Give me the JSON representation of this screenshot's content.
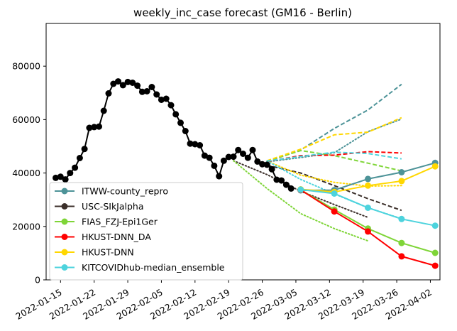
{
  "chart_data": {
    "type": "line",
    "title": "weekly_inc_case forecast (GM16 - Berlin)",
    "xlabel": "",
    "ylabel": "",
    "xlim": [
      "2022-01-12",
      "2022-04-04"
    ],
    "ylim": [
      0,
      96000
    ],
    "y_ticks": [
      0,
      20000,
      40000,
      60000,
      80000
    ],
    "x_ticks": [
      "2022-01-15",
      "2022-01-22",
      "2022-01-29",
      "2022-02-05",
      "2022-02-12",
      "2022-02-19",
      "2022-02-26",
      "2022-03-05",
      "2022-03-12",
      "2022-03-19",
      "2022-03-26",
      "2022-04-02"
    ],
    "grid": false,
    "legend_position": "lower-left",
    "observed": {
      "color": "#000000",
      "x": [
        "2022-01-14",
        "2022-01-15",
        "2022-01-16",
        "2022-01-17",
        "2022-01-18",
        "2022-01-19",
        "2022-01-20",
        "2022-01-21",
        "2022-01-22",
        "2022-01-23",
        "2022-01-24",
        "2022-01-25",
        "2022-01-26",
        "2022-01-27",
        "2022-01-28",
        "2022-01-29",
        "2022-01-30",
        "2022-01-31",
        "2022-02-01",
        "2022-02-02",
        "2022-02-03",
        "2022-02-04",
        "2022-02-05",
        "2022-02-06",
        "2022-02-07",
        "2022-02-08",
        "2022-02-09",
        "2022-02-10",
        "2022-02-11",
        "2022-02-12",
        "2022-02-13",
        "2022-02-14",
        "2022-02-15",
        "2022-02-16",
        "2022-02-17",
        "2022-02-18",
        "2022-02-19",
        "2022-02-20",
        "2022-02-21",
        "2022-02-22",
        "2022-02-23",
        "2022-02-24",
        "2022-02-25",
        "2022-02-26",
        "2022-02-27",
        "2022-02-28",
        "2022-03-01",
        "2022-03-02",
        "2022-03-03",
        "2022-03-04"
      ],
      "y": [
        38200,
        38600,
        37600,
        40000,
        42000,
        45600,
        49000,
        56900,
        57200,
        57400,
        63300,
        69800,
        73400,
        74300,
        72900,
        74100,
        73800,
        72700,
        70400,
        70600,
        72200,
        69400,
        67400,
        67800,
        65400,
        62000,
        58800,
        55700,
        51000,
        50800,
        50400,
        46500,
        45700,
        42700,
        38800,
        44600,
        46000,
        46100,
        48600,
        47200,
        45700,
        48600,
        44300,
        43300,
        43100,
        41400,
        37500,
        37200,
        35600,
        34200
      ]
    },
    "series": [
      {
        "name": "ITWW-county_repro",
        "color": "#4d9398",
        "median": {
          "x": [
            "2022-03-06",
            "2022-03-13",
            "2022-03-20",
            "2022-03-27",
            "2022-04-03"
          ],
          "y": [
            33500,
            33600,
            37800,
            40300,
            43800
          ]
        },
        "upper": {
          "x": [
            "2022-02-27",
            "2022-03-06",
            "2022-03-13",
            "2022-03-20",
            "2022-03-27"
          ],
          "y": [
            44200,
            48600,
            56700,
            63600,
            73200
          ]
        },
        "lower": {
          "x": [
            "2022-02-27",
            "2022-03-06",
            "2022-03-13",
            "2022-03-20",
            "2022-03-27"
          ],
          "y": [
            44200,
            45800,
            47600,
            55500,
            60200
          ]
        }
      },
      {
        "name": "USC-SIkJalpha",
        "color": "#3b2f2a",
        "upper": {
          "x": [
            "2022-02-27",
            "2022-03-06",
            "2022-03-13",
            "2022-03-20",
            "2022-03-27"
          ],
          "y": [
            42900,
            40000,
            35300,
            30400,
            26000
          ]
        },
        "lower": {
          "x": [
            "2022-02-20",
            "2022-02-27",
            "2022-03-06",
            "2022-03-13",
            "2022-03-20"
          ],
          "y": [
            44600,
            39400,
            33200,
            28200,
            23400
          ]
        }
      },
      {
        "name": "FIAS_FZJ-Epi1Ger",
        "color": "#7fd538",
        "median": {
          "x": [
            "2022-03-06",
            "2022-03-13",
            "2022-03-20",
            "2022-03-27",
            "2022-04-03"
          ],
          "y": [
            33700,
            26300,
            19200,
            13800,
            10100
          ]
        },
        "upper": {
          "x": [
            "2022-02-27",
            "2022-03-06",
            "2022-03-13",
            "2022-03-20",
            "2022-03-27"
          ],
          "y": [
            44500,
            48400,
            46500,
            43700,
            40800
          ]
        },
        "lower": {
          "x": [
            "2022-02-20",
            "2022-02-27",
            "2022-03-06",
            "2022-03-13",
            "2022-03-20"
          ],
          "y": [
            44600,
            34200,
            24800,
            19200,
            14600
          ]
        }
      },
      {
        "name": "HKUST-DNN_DA",
        "color": "#ff0000",
        "median": {
          "x": [
            "2022-03-06",
            "2022-03-13",
            "2022-03-20",
            "2022-03-27",
            "2022-04-03"
          ],
          "y": [
            33700,
            25600,
            18100,
            8800,
            5300
          ]
        },
        "upper": {
          "x": [
            "2022-02-27",
            "2022-03-06",
            "2022-03-13",
            "2022-03-20",
            "2022-03-27"
          ],
          "y": [
            44300,
            46500,
            46700,
            48000,
            47500
          ]
        }
      },
      {
        "name": "HKUST-DNN",
        "color": "#ffd700",
        "median": {
          "x": [
            "2022-03-06",
            "2022-03-13",
            "2022-03-20",
            "2022-03-27",
            "2022-04-03"
          ],
          "y": [
            33900,
            32900,
            35300,
            37000,
            42500
          ]
        },
        "upper": {
          "x": [
            "2022-02-27",
            "2022-03-06",
            "2022-03-13",
            "2022-03-20",
            "2022-03-27"
          ],
          "y": [
            44600,
            48900,
            54300,
            55300,
            60700
          ]
        },
        "lower": {
          "x": [
            "2022-02-27",
            "2022-03-06",
            "2022-03-13",
            "2022-03-20",
            "2022-03-27"
          ],
          "y": [
            44500,
            39200,
            36500,
            35100,
            35300
          ]
        }
      },
      {
        "name": "KITCOVIDhub-median_ensemble",
        "color": "#4dd3dd",
        "median": {
          "x": [
            "2022-03-06",
            "2022-03-13",
            "2022-03-20",
            "2022-03-27",
            "2022-04-03"
          ],
          "y": [
            33800,
            32300,
            27000,
            22800,
            20300
          ]
        },
        "upper": {
          "x": [
            "2022-02-27",
            "2022-03-06",
            "2022-03-13",
            "2022-03-20",
            "2022-03-27"
          ],
          "y": [
            44500,
            46200,
            47800,
            47300,
            45300
          ]
        },
        "lower": {
          "x": [
            "2022-02-27",
            "2022-03-06",
            "2022-03-13",
            "2022-03-20",
            "2022-03-27"
          ],
          "y": [
            44500,
            37600,
            32200,
            27000,
            22900
          ]
        }
      }
    ]
  }
}
